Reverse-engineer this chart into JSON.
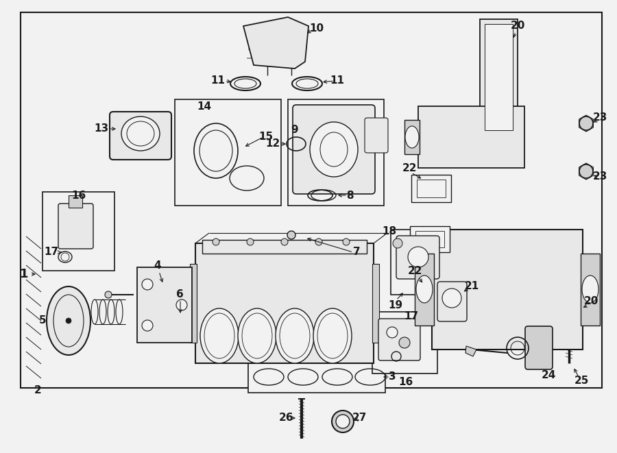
{
  "bg_color": "#f2f2f2",
  "line_color": "#1a1a1a",
  "white": "#ffffff",
  "light_gray": "#e8e8e8",
  "mid_gray": "#d0d0d0"
}
